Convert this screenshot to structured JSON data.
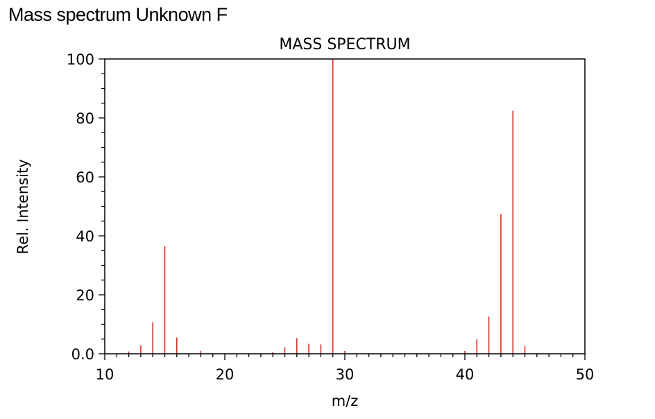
{
  "page_title": "Mass spectrum Unknown F",
  "chart_data": {
    "type": "bar",
    "title": "MASS SPECTRUM",
    "xlabel": "m/z",
    "ylabel": "Rel. Intensity",
    "xlim": [
      10,
      50
    ],
    "ylim": [
      0,
      100
    ],
    "x_ticks": [
      10,
      20,
      30,
      40,
      50
    ],
    "x_tick_labels": [
      "10",
      "20",
      "30",
      "40",
      "50"
    ],
    "y_ticks": [
      0,
      20,
      40,
      60,
      80,
      100
    ],
    "y_tick_labels": [
      "0.0",
      "20",
      "40",
      "60",
      "80",
      "100"
    ],
    "grid": false,
    "bar_color": "#e8251d",
    "x": [
      12,
      13,
      14,
      15,
      16,
      18,
      24,
      25,
      26,
      27,
      28,
      29,
      30,
      40,
      41,
      42,
      43,
      44,
      45
    ],
    "values": [
      0.8,
      2.8,
      10.7,
      36.5,
      5.5,
      1.0,
      0.6,
      2.2,
      5.3,
      3.4,
      3.2,
      100,
      1.0,
      1.0,
      4.9,
      12.6,
      47.4,
      82.4,
      2.6
    ]
  }
}
